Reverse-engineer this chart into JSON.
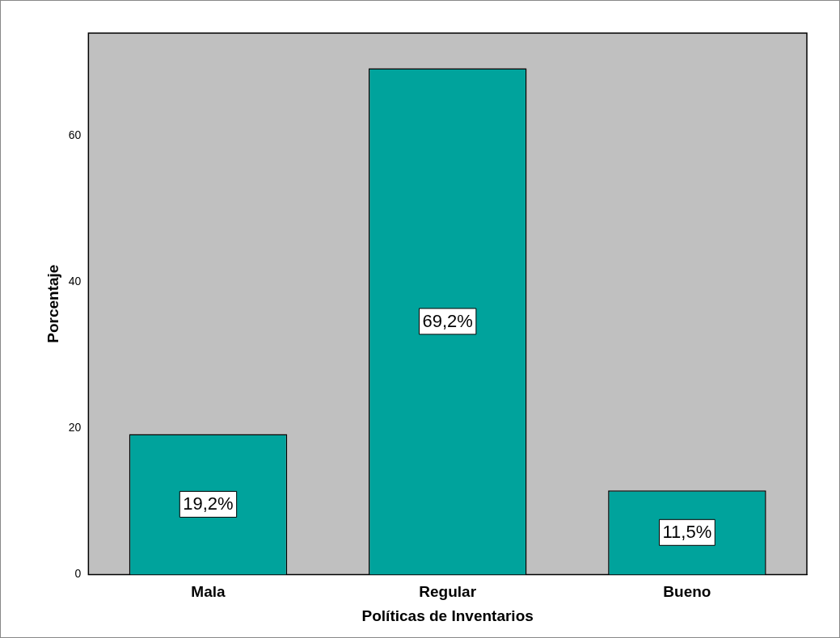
{
  "chart_data": {
    "type": "bar",
    "xlabel": "Políticas de Inventarios",
    "ylabel": "Porcentaje",
    "categories": [
      "Mala",
      "Regular",
      "Bueno"
    ],
    "values": [
      19.2,
      69.2,
      11.5
    ],
    "value_labels": [
      "19,2%",
      "69,2%",
      "11,5%"
    ],
    "color": "#00a39c",
    "ylim": [
      0,
      74
    ],
    "yticks": [
      0,
      20,
      40,
      60
    ],
    "grid": false,
    "legend": false
  }
}
